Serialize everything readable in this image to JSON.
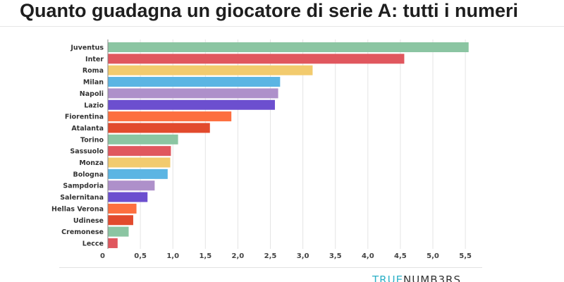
{
  "page": {
    "title": "Quanto guadagna un giocatore di serie A: tutti i numeri"
  },
  "logo": {
    "part_a": "TRUE",
    "part_b": "NUMB3RS"
  },
  "chart_data": {
    "type": "bar",
    "orientation": "horizontal",
    "title": "",
    "xlabel": "",
    "ylabel": "",
    "xlim": [
      0,
      5.6
    ],
    "grid": true,
    "categories": [
      "Juventus",
      "Inter",
      "Roma",
      "Milan",
      "Napoli",
      "Lazio",
      "Fiorentina",
      "Atalanta",
      "Torino",
      "Sassuolo",
      "Monza",
      "Bologna",
      "Sampdoria",
      "Salernitana",
      "Hellas Verona",
      "Udinese",
      "Cremonese",
      "Lecce"
    ],
    "values": [
      5.55,
      4.56,
      3.15,
      2.65,
      2.62,
      2.57,
      1.9,
      1.57,
      1.08,
      0.97,
      0.96,
      0.92,
      0.72,
      0.61,
      0.44,
      0.39,
      0.32,
      0.15
    ],
    "colors": [
      "#8bc5a2",
      "#e0575e",
      "#f2cb6e",
      "#5bb5e3",
      "#ae90ca",
      "#6c4fcf",
      "#fd6f3f",
      "#e24a2d",
      "#8bc5a2",
      "#e0575e",
      "#f2cb6e",
      "#5bb5e3",
      "#ae90ca",
      "#6c4fcf",
      "#fd6f3f",
      "#e24a2d",
      "#8bc5a2",
      "#e0575e"
    ],
    "ticks": [
      0,
      0.5,
      1.0,
      1.5,
      2.0,
      2.5,
      3.0,
      3.5,
      4.0,
      4.5,
      5.0,
      5.5
    ],
    "tick_labels": [
      "0",
      "0,5",
      "1,0",
      "1,5",
      "2,0",
      "2,5",
      "3,0",
      "3,5",
      "4,0",
      "4,5",
      "5,0",
      "5,5"
    ]
  }
}
